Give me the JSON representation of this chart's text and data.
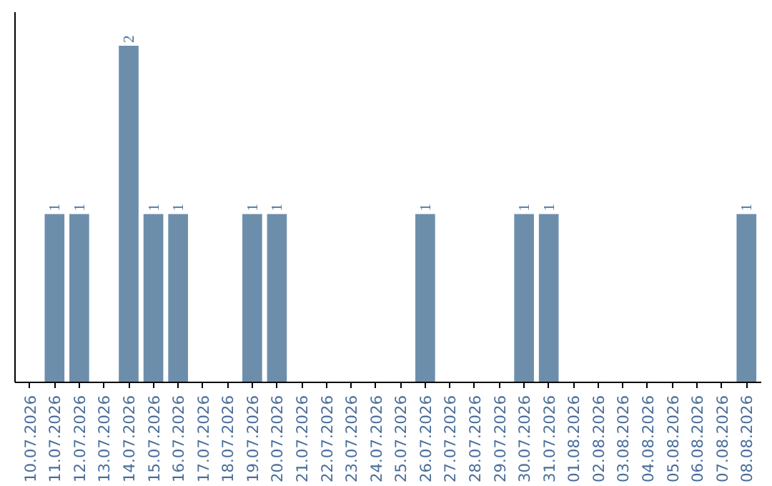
{
  "chart_data": {
    "type": "bar",
    "categories": [
      "10.07.2026",
      "11.07.2026",
      "12.07.2026",
      "13.07.2026",
      "14.07.2026",
      "15.07.2026",
      "16.07.2026",
      "17.07.2026",
      "18.07.2026",
      "19.07.2026",
      "20.07.2026",
      "21.07.2026",
      "22.07.2026",
      "23.07.2026",
      "24.07.2026",
      "25.07.2026",
      "26.07.2026",
      "27.07.2026",
      "28.07.2026",
      "29.07.2026",
      "30.07.2026",
      "31.07.2026",
      "01.08.2026",
      "02.08.2026",
      "03.08.2026",
      "04.08.2026",
      "05.08.2026",
      "06.08.2026",
      "07.08.2026",
      "08.08.2026"
    ],
    "values": [
      0,
      1,
      1,
      0,
      2,
      1,
      1,
      0,
      0,
      1,
      1,
      0,
      0,
      0,
      0,
      0,
      1,
      0,
      0,
      0,
      1,
      1,
      0,
      0,
      0,
      0,
      0,
      0,
      0,
      1
    ],
    "value_labels": [
      null,
      "1",
      "1",
      null,
      "2",
      "1",
      "1",
      null,
      null,
      "1",
      "1",
      null,
      null,
      null,
      null,
      null,
      "1",
      null,
      null,
      null,
      "1",
      "1",
      null,
      null,
      null,
      null,
      null,
      null,
      null,
      "1"
    ],
    "color": "#6d8eab",
    "tick_labels": "x"
  }
}
